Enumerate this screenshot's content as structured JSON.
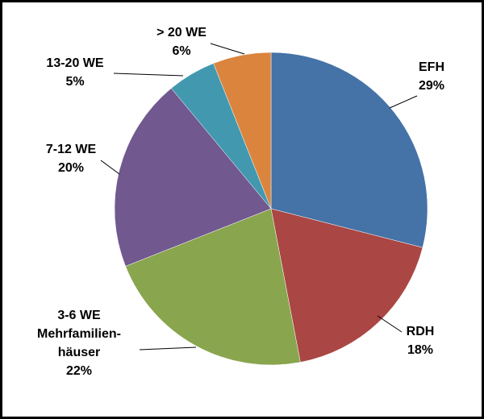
{
  "chart_data": {
    "type": "pie",
    "slices": [
      {
        "lines": [
          "EFH"
        ],
        "pct_label": "29%",
        "value": 29,
        "color": "#4572A7"
      },
      {
        "lines": [
          "RDH"
        ],
        "pct_label": "18%",
        "value": 18,
        "color": "#AA4643"
      },
      {
        "lines": [
          "3-6 WE",
          "Mehrfamilien-",
          "häuser"
        ],
        "pct_label": "22%",
        "value": 22,
        "color": "#89A54E"
      },
      {
        "lines": [
          "7-12 WE"
        ],
        "pct_label": "20%",
        "value": 20,
        "color": "#71588F"
      },
      {
        "lines": [
          "13-20 WE"
        ],
        "pct_label": "5%",
        "value": 5,
        "color": "#4198AF"
      },
      {
        "lines": [
          "> 20 WE"
        ],
        "pct_label": "6%",
        "value": 6,
        "color": "#DB843D"
      }
    ],
    "start": "12 o'clock",
    "direction": "clockwise",
    "legend": "none"
  }
}
